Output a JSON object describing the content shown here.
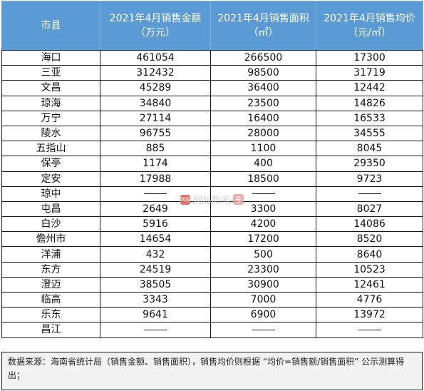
{
  "table": {
    "headers": [
      {
        "line1": "市县",
        "line2": ""
      },
      {
        "line1": "2021年4月销售金额",
        "line2": "（万元）"
      },
      {
        "line1": "2021年4月销售面积",
        "line2": "（㎡）"
      },
      {
        "line1": "2021年4月销售均价",
        "line2": "（元/㎡）"
      }
    ],
    "rows": [
      {
        "city": "海口",
        "amount": "461054",
        "area": "266500",
        "price": "17300"
      },
      {
        "city": "三亚",
        "amount": "312432",
        "area": "98500",
        "price": "31719"
      },
      {
        "city": "文昌",
        "amount": "45289",
        "area": "36400",
        "price": "12442"
      },
      {
        "city": "琼海",
        "amount": "34840",
        "area": "23500",
        "price": "14826"
      },
      {
        "city": "万宁",
        "amount": "27114",
        "area": "16400",
        "price": "16533"
      },
      {
        "city": "陵水",
        "amount": "96755",
        "area": "28000",
        "price": "34555"
      },
      {
        "city": "五指山",
        "amount": "885",
        "area": "1100",
        "price": "8045"
      },
      {
        "city": "保亭",
        "amount": "1174",
        "area": "400",
        "price": "29350"
      },
      {
        "city": "定安",
        "amount": "17988",
        "area": "18500",
        "price": "9723"
      },
      {
        "city": "琼中",
        "amount": "",
        "area": "",
        "price": ""
      },
      {
        "city": "屯昌",
        "amount": "2649",
        "area": "3300",
        "price": "8027"
      },
      {
        "city": "白沙",
        "amount": "5916",
        "area": "4200",
        "price": "14086"
      },
      {
        "city": "儋州市",
        "amount": "14654",
        "area": "17200",
        "price": "8520"
      },
      {
        "city": "洋浦",
        "amount": "432",
        "area": "500",
        "price": "8640"
      },
      {
        "city": "东方",
        "amount": "24519",
        "area": "23300",
        "price": "10523"
      },
      {
        "city": "澄迈",
        "amount": "38505",
        "area": "30900",
        "price": "12461"
      },
      {
        "city": "临高",
        "amount": "3343",
        "area": "7000",
        "price": "4776"
      },
      {
        "city": "乐东",
        "amount": "9641",
        "area": "6900",
        "price": "13972"
      },
      {
        "city": "昌江",
        "amount": "",
        "area": "",
        "price": ""
      }
    ]
  },
  "watermark": {
    "logo_text": "网易",
    "text": "网易新闻",
    "badge": "号"
  },
  "source_note": "数据来源：海南省统计局（销售金额、销售面积），销售均价则根据 “均价=销售额/销售面积” 公示测算得出；"
}
